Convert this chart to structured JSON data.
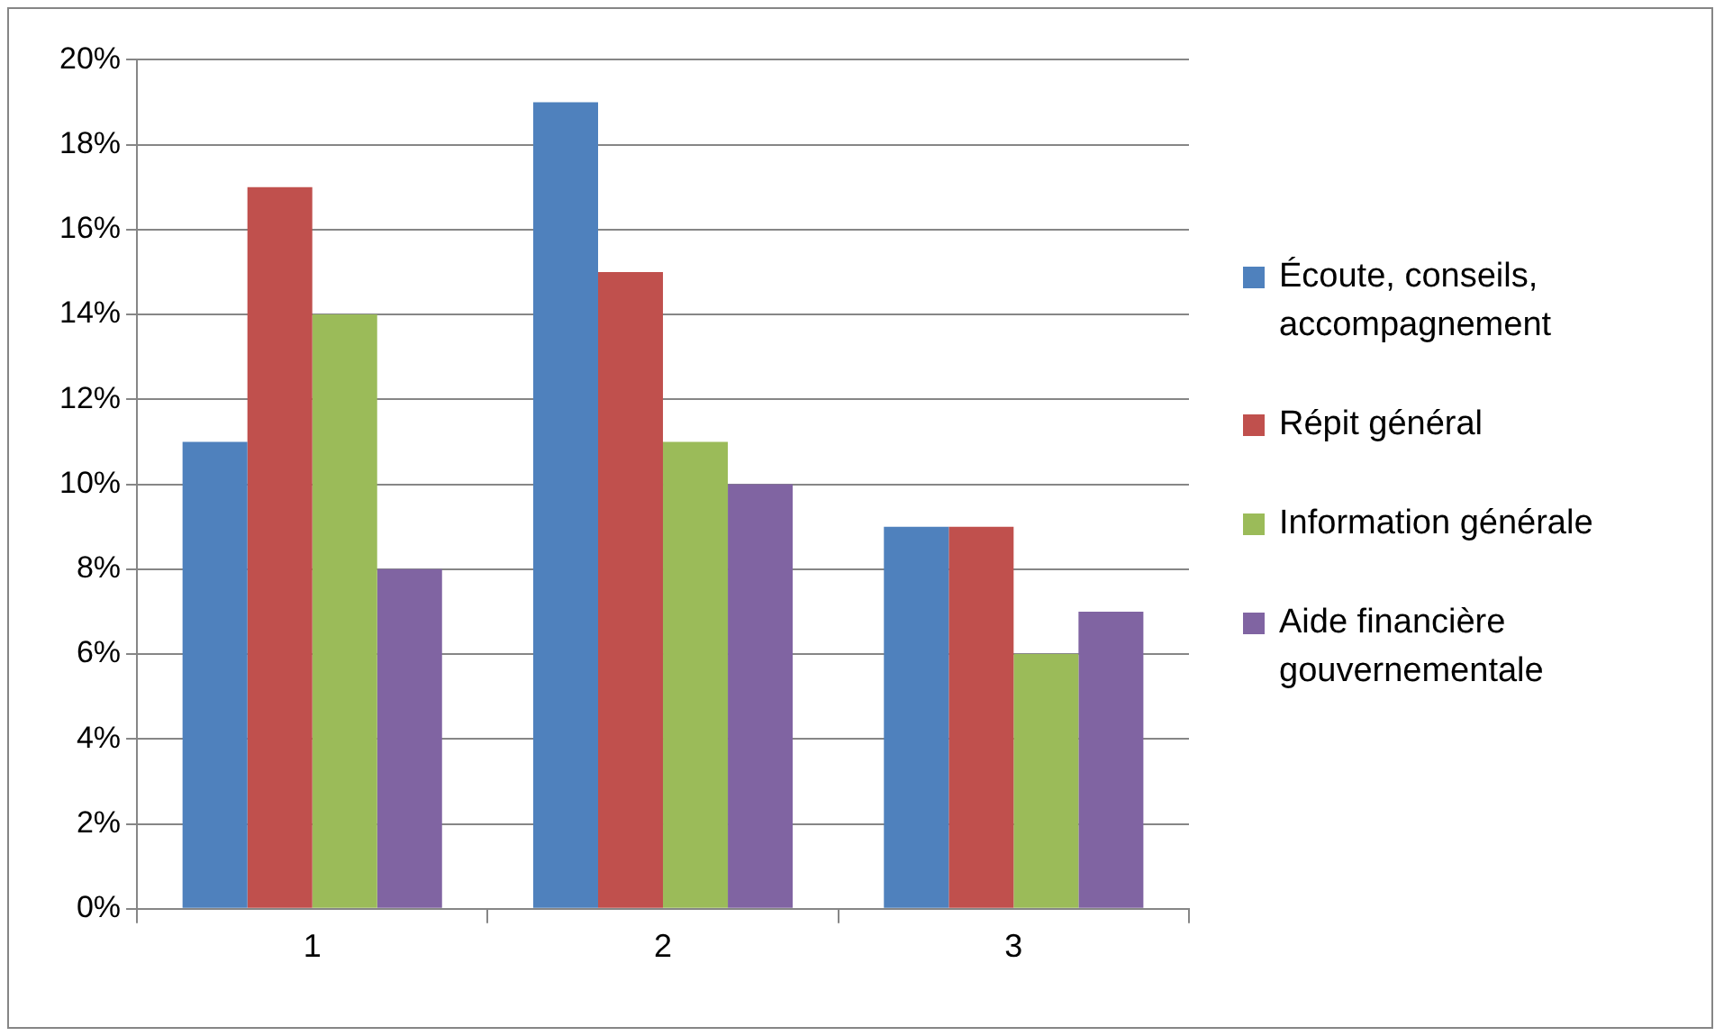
{
  "chart_data": {
    "type": "bar",
    "categories": [
      "1",
      "2",
      "3"
    ],
    "series": [
      {
        "name": "Écoute, conseils, accompagnement",
        "color": "#4f81bd",
        "values": [
          11,
          19,
          9
        ]
      },
      {
        "name": "Répit général",
        "color": "#c0504d",
        "values": [
          17,
          15,
          9
        ]
      },
      {
        "name": "Information générale",
        "color": "#9bbb59",
        "values": [
          14,
          11,
          6
        ]
      },
      {
        "name": "Aide financière gouvernementale",
        "color": "#8064a2",
        "values": [
          8,
          10,
          7
        ]
      }
    ],
    "ylim": [
      0,
      20
    ],
    "yticks": [
      {
        "value": 0,
        "label": "0%"
      },
      {
        "value": 2,
        "label": "2%"
      },
      {
        "value": 4,
        "label": "4%"
      },
      {
        "value": 6,
        "label": "6%"
      },
      {
        "value": 8,
        "label": "8%"
      },
      {
        "value": 10,
        "label": "10%"
      },
      {
        "value": 12,
        "label": "12%"
      },
      {
        "value": 14,
        "label": "14%"
      },
      {
        "value": 16,
        "label": "16%"
      },
      {
        "value": 18,
        "label": "18%"
      },
      {
        "value": 20,
        "label": "20%"
      }
    ],
    "grid": "y",
    "legend": "right"
  }
}
